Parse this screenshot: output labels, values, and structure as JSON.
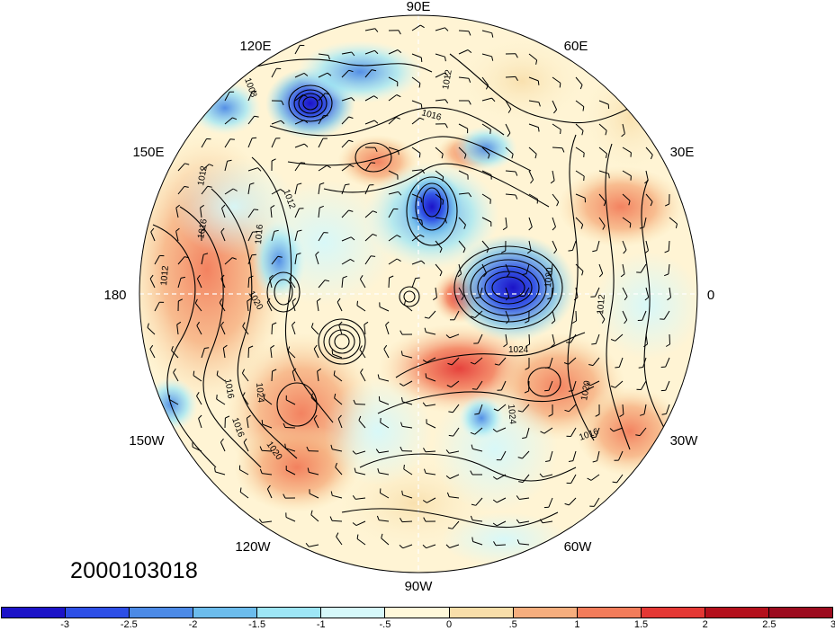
{
  "date_stamp": "2000103018",
  "longitude_labels": [
    "90E",
    "60E",
    "30E",
    "0",
    "30W",
    "60W",
    "90W",
    "120W",
    "150W",
    "180",
    "150E",
    "120E"
  ],
  "contour_labels": [
    "1008",
    "1012",
    "1016",
    "1016",
    "1016",
    "1012",
    "1012",
    "1016",
    "1020",
    "1024",
    "1020",
    "1016",
    "1020",
    "1024",
    "1016",
    "1020",
    "1012",
    "1012",
    "1024"
  ],
  "colorbar": {
    "colors": [
      "#1c13c8",
      "#2d4fe6",
      "#4c8ae6",
      "#6cbcec",
      "#9ee6f6",
      "#d6f8fa",
      "#fff8da",
      "#f8deaa",
      "#f6ae7e",
      "#f27c5a",
      "#e43834",
      "#b4101c",
      "#9c0b1e"
    ],
    "tick_labels": [
      "-3",
      "-2.5",
      "-2",
      "-1.5",
      "-1",
      "-.5",
      "0",
      ".5",
      "1",
      "1.5",
      "2",
      "2.5",
      "3"
    ]
  }
}
